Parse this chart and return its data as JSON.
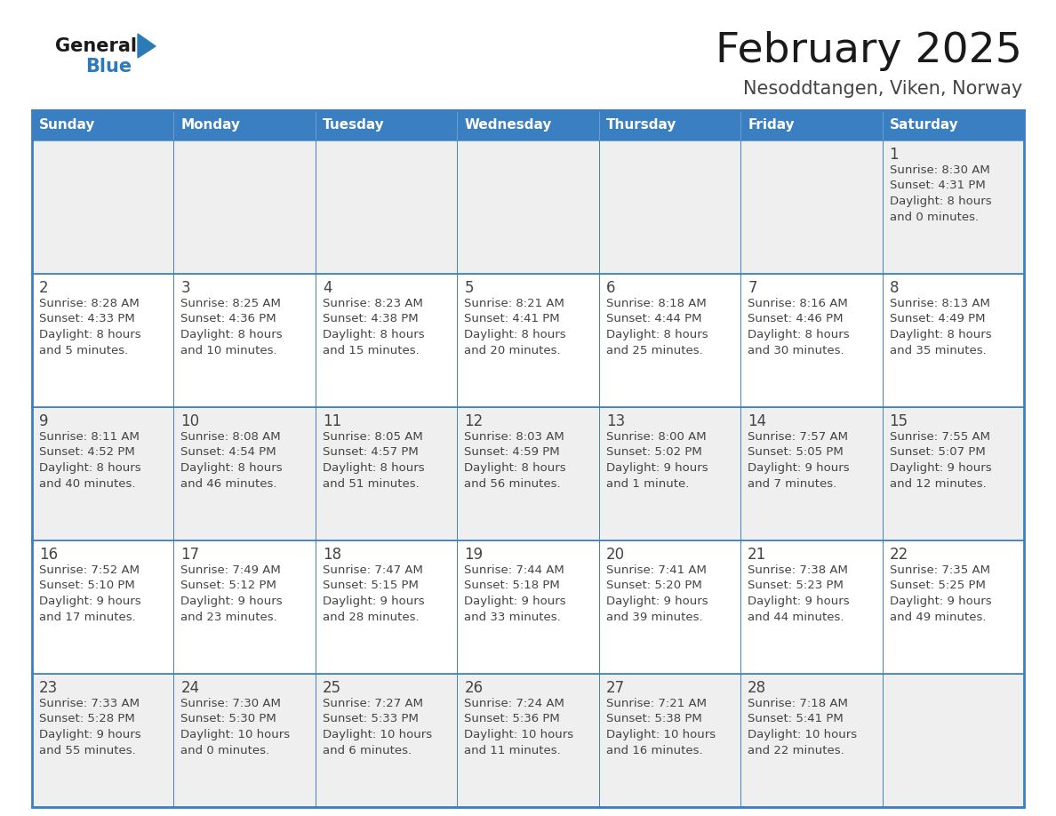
{
  "title": "February 2025",
  "subtitle": "Nesoddtangen, Viken, Norway",
  "days_of_week": [
    "Sunday",
    "Monday",
    "Tuesday",
    "Wednesday",
    "Thursday",
    "Friday",
    "Saturday"
  ],
  "header_bg": "#3A7FC1",
  "header_text": "#FFFFFF",
  "row_bg": [
    "#EFEFEF",
    "#FFFFFF",
    "#EFEFEF",
    "#FFFFFF",
    "#EFEFEF"
  ],
  "border_color": "#3A7FC1",
  "text_color": "#444444",
  "day_num_color": "#444444",
  "logo_general_color": "#1a1a1a",
  "logo_blue_color": "#2B7BB9",
  "title_color": "#1a1a1a",
  "subtitle_color": "#444444",
  "calendar_data": [
    [
      {
        "day": null,
        "sunrise": null,
        "sunset": null,
        "daylight_line1": null,
        "daylight_line2": null
      },
      {
        "day": null,
        "sunrise": null,
        "sunset": null,
        "daylight_line1": null,
        "daylight_line2": null
      },
      {
        "day": null,
        "sunrise": null,
        "sunset": null,
        "daylight_line1": null,
        "daylight_line2": null
      },
      {
        "day": null,
        "sunrise": null,
        "sunset": null,
        "daylight_line1": null,
        "daylight_line2": null
      },
      {
        "day": null,
        "sunrise": null,
        "sunset": null,
        "daylight_line1": null,
        "daylight_line2": null
      },
      {
        "day": null,
        "sunrise": null,
        "sunset": null,
        "daylight_line1": null,
        "daylight_line2": null
      },
      {
        "day": 1,
        "sunrise": "8:30 AM",
        "sunset": "4:31 PM",
        "daylight_line1": "8 hours",
        "daylight_line2": "and 0 minutes."
      }
    ],
    [
      {
        "day": 2,
        "sunrise": "8:28 AM",
        "sunset": "4:33 PM",
        "daylight_line1": "8 hours",
        "daylight_line2": "and 5 minutes."
      },
      {
        "day": 3,
        "sunrise": "8:25 AM",
        "sunset": "4:36 PM",
        "daylight_line1": "8 hours",
        "daylight_line2": "and 10 minutes."
      },
      {
        "day": 4,
        "sunrise": "8:23 AM",
        "sunset": "4:38 PM",
        "daylight_line1": "8 hours",
        "daylight_line2": "and 15 minutes."
      },
      {
        "day": 5,
        "sunrise": "8:21 AM",
        "sunset": "4:41 PM",
        "daylight_line1": "8 hours",
        "daylight_line2": "and 20 minutes."
      },
      {
        "day": 6,
        "sunrise": "8:18 AM",
        "sunset": "4:44 PM",
        "daylight_line1": "8 hours",
        "daylight_line2": "and 25 minutes."
      },
      {
        "day": 7,
        "sunrise": "8:16 AM",
        "sunset": "4:46 PM",
        "daylight_line1": "8 hours",
        "daylight_line2": "and 30 minutes."
      },
      {
        "day": 8,
        "sunrise": "8:13 AM",
        "sunset": "4:49 PM",
        "daylight_line1": "8 hours",
        "daylight_line2": "and 35 minutes."
      }
    ],
    [
      {
        "day": 9,
        "sunrise": "8:11 AM",
        "sunset": "4:52 PM",
        "daylight_line1": "8 hours",
        "daylight_line2": "and 40 minutes."
      },
      {
        "day": 10,
        "sunrise": "8:08 AM",
        "sunset": "4:54 PM",
        "daylight_line1": "8 hours",
        "daylight_line2": "and 46 minutes."
      },
      {
        "day": 11,
        "sunrise": "8:05 AM",
        "sunset": "4:57 PM",
        "daylight_line1": "8 hours",
        "daylight_line2": "and 51 minutes."
      },
      {
        "day": 12,
        "sunrise": "8:03 AM",
        "sunset": "4:59 PM",
        "daylight_line1": "8 hours",
        "daylight_line2": "and 56 minutes."
      },
      {
        "day": 13,
        "sunrise": "8:00 AM",
        "sunset": "5:02 PM",
        "daylight_line1": "9 hours",
        "daylight_line2": "and 1 minute."
      },
      {
        "day": 14,
        "sunrise": "7:57 AM",
        "sunset": "5:05 PM",
        "daylight_line1": "9 hours",
        "daylight_line2": "and 7 minutes."
      },
      {
        "day": 15,
        "sunrise": "7:55 AM",
        "sunset": "5:07 PM",
        "daylight_line1": "9 hours",
        "daylight_line2": "and 12 minutes."
      }
    ],
    [
      {
        "day": 16,
        "sunrise": "7:52 AM",
        "sunset": "5:10 PM",
        "daylight_line1": "9 hours",
        "daylight_line2": "and 17 minutes."
      },
      {
        "day": 17,
        "sunrise": "7:49 AM",
        "sunset": "5:12 PM",
        "daylight_line1": "9 hours",
        "daylight_line2": "and 23 minutes."
      },
      {
        "day": 18,
        "sunrise": "7:47 AM",
        "sunset": "5:15 PM",
        "daylight_line1": "9 hours",
        "daylight_line2": "and 28 minutes."
      },
      {
        "day": 19,
        "sunrise": "7:44 AM",
        "sunset": "5:18 PM",
        "daylight_line1": "9 hours",
        "daylight_line2": "and 33 minutes."
      },
      {
        "day": 20,
        "sunrise": "7:41 AM",
        "sunset": "5:20 PM",
        "daylight_line1": "9 hours",
        "daylight_line2": "and 39 minutes."
      },
      {
        "day": 21,
        "sunrise": "7:38 AM",
        "sunset": "5:23 PM",
        "daylight_line1": "9 hours",
        "daylight_line2": "and 44 minutes."
      },
      {
        "day": 22,
        "sunrise": "7:35 AM",
        "sunset": "5:25 PM",
        "daylight_line1": "9 hours",
        "daylight_line2": "and 49 minutes."
      }
    ],
    [
      {
        "day": 23,
        "sunrise": "7:33 AM",
        "sunset": "5:28 PM",
        "daylight_line1": "9 hours",
        "daylight_line2": "and 55 minutes."
      },
      {
        "day": 24,
        "sunrise": "7:30 AM",
        "sunset": "5:30 PM",
        "daylight_line1": "10 hours",
        "daylight_line2": "and 0 minutes."
      },
      {
        "day": 25,
        "sunrise": "7:27 AM",
        "sunset": "5:33 PM",
        "daylight_line1": "10 hours",
        "daylight_line2": "and 6 minutes."
      },
      {
        "day": 26,
        "sunrise": "7:24 AM",
        "sunset": "5:36 PM",
        "daylight_line1": "10 hours",
        "daylight_line2": "and 11 minutes."
      },
      {
        "day": 27,
        "sunrise": "7:21 AM",
        "sunset": "5:38 PM",
        "daylight_line1": "10 hours",
        "daylight_line2": "and 16 minutes."
      },
      {
        "day": 28,
        "sunrise": "7:18 AM",
        "sunset": "5:41 PM",
        "daylight_line1": "10 hours",
        "daylight_line2": "and 22 minutes."
      },
      {
        "day": null,
        "sunrise": null,
        "sunset": null,
        "daylight_line1": null,
        "daylight_line2": null
      }
    ]
  ]
}
